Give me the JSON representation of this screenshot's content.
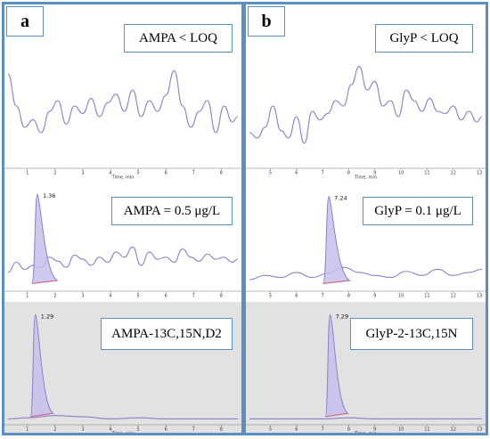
{
  "chart_data": [
    {
      "panel": "a",
      "type": "line",
      "rows": [
        {
          "label": "AMPA < LOQ",
          "xlabel": "Time, min",
          "xticks": [
            "1",
            "2",
            "3",
            "4",
            "5",
            "6",
            "7",
            "8"
          ],
          "xlim": [
            0.3,
            8.6
          ],
          "peak": null,
          "background": "#ffffff",
          "series": [
            {
              "x": [
                0.3,
                0.6,
                0.9,
                1.2,
                1.5,
                1.8,
                2.1,
                2.4,
                2.7,
                3.0,
                3.3,
                3.6,
                3.9,
                4.2,
                4.5,
                4.8,
                5.1,
                5.4,
                5.7,
                6.0,
                6.3,
                6.6,
                6.9,
                7.2,
                7.5,
                7.8,
                8.1,
                8.4,
                8.6
              ],
              "y": [
                0.85,
                0.55,
                0.35,
                0.42,
                0.3,
                0.5,
                0.6,
                0.38,
                0.55,
                0.48,
                0.62,
                0.45,
                0.58,
                0.66,
                0.5,
                0.7,
                0.45,
                0.6,
                0.5,
                0.65,
                0.88,
                0.55,
                0.35,
                0.5,
                0.6,
                0.3,
                0.55,
                0.4,
                0.45
              ]
            }
          ]
        },
        {
          "label": "AMPA = 0.5 μg/L",
          "xlabel": "",
          "xticks": [
            "1",
            "2",
            "3",
            "4",
            "5",
            "6",
            "7",
            "8"
          ],
          "xlim": [
            0.3,
            8.6
          ],
          "peak": {
            "x": 1.36,
            "label": "1.36",
            "height": 0.92,
            "width": 0.45
          },
          "background": "#ffffff",
          "series": [
            {
              "x": [
                0.3,
                0.6,
                0.9,
                1.2,
                1.5,
                1.8,
                2.1,
                2.4,
                2.7,
                3.0,
                3.3,
                3.6,
                3.9,
                4.2,
                4.5,
                4.8,
                5.1,
                5.4,
                5.7,
                6.0,
                6.3,
                6.6,
                6.9,
                7.2,
                7.5,
                7.8,
                8.1,
                8.4,
                8.6
              ],
              "y": [
                0.15,
                0.25,
                0.18,
                0.22,
                0.2,
                0.3,
                0.26,
                0.2,
                0.32,
                0.28,
                0.22,
                0.3,
                0.25,
                0.35,
                0.3,
                0.4,
                0.22,
                0.35,
                0.28,
                0.3,
                0.25,
                0.38,
                0.3,
                0.26,
                0.33,
                0.28,
                0.3,
                0.25,
                0.28
              ]
            }
          ]
        },
        {
          "label": "AMPA-13C,15N,D2",
          "xlabel": "Time, min",
          "xticks": [
            "1",
            "2",
            "3",
            "4",
            "5",
            "6",
            "7",
            "8"
          ],
          "xlim": [
            0.3,
            8.6
          ],
          "peak": {
            "x": 1.29,
            "label": "1.29",
            "height": 0.95,
            "width": 0.4
          },
          "background": "#e2e2e2",
          "series": [
            {
              "x": [
                0.3,
                1.0,
                2.0,
                3.0,
                4.0,
                5.0,
                6.0,
                7.0,
                8.0,
                8.6
              ],
              "y": [
                0.02,
                0.03,
                0.05,
                0.04,
                0.02,
                0.03,
                0.02,
                0.02,
                0.02,
                0.02
              ]
            }
          ]
        }
      ]
    },
    {
      "panel": "b",
      "type": "line",
      "rows": [
        {
          "label": "GlyP < LOQ",
          "xlabel": "Time, min",
          "xticks": [
            "5",
            "6",
            "7",
            "8",
            "9",
            "10",
            "11",
            "12",
            "13"
          ],
          "xlim": [
            4.2,
            13.1
          ],
          "peak": null,
          "background": "#ffffff",
          "series": [
            {
              "x": [
                4.2,
                4.5,
                4.8,
                5.1,
                5.4,
                5.7,
                6.0,
                6.3,
                6.6,
                6.9,
                7.2,
                7.5,
                7.8,
                8.1,
                8.4,
                8.7,
                9.0,
                9.3,
                9.6,
                9.9,
                10.2,
                10.5,
                10.8,
                11.1,
                11.4,
                11.7,
                12.0,
                12.3,
                12.6,
                12.9,
                13.1
              ],
              "y": [
                0.3,
                0.25,
                0.35,
                0.55,
                0.32,
                0.25,
                0.45,
                0.2,
                0.5,
                0.42,
                0.48,
                0.6,
                0.55,
                0.75,
                0.92,
                0.7,
                0.78,
                0.55,
                0.6,
                0.45,
                0.7,
                0.6,
                0.5,
                0.62,
                0.5,
                0.48,
                0.55,
                0.42,
                0.5,
                0.4,
                0.45
              ]
            }
          ]
        },
        {
          "label": "GlyP = 0.1 μg/L",
          "xlabel": "",
          "xticks": [
            "5",
            "6",
            "7",
            "8",
            "9",
            "10",
            "11",
            "12",
            "13"
          ],
          "xlim": [
            4.2,
            13.1
          ],
          "peak": {
            "x": 7.24,
            "label": "7.24",
            "height": 0.9,
            "width": 0.5
          },
          "background": "#ffffff",
          "series": [
            {
              "x": [
                4.2,
                4.8,
                5.4,
                6.0,
                6.6,
                7.2,
                7.8,
                8.4,
                9.0,
                9.6,
                10.2,
                10.8,
                11.4,
                12.0,
                12.6,
                13.1
              ],
              "y": [
                0.08,
                0.12,
                0.1,
                0.15,
                0.1,
                0.14,
                0.2,
                0.15,
                0.12,
                0.1,
                0.16,
                0.12,
                0.18,
                0.12,
                0.15,
                0.18
              ]
            }
          ]
        },
        {
          "label": "GlyP-2-13C,15N",
          "xlabel": "Time, min",
          "xticks": [
            "5",
            "6",
            "7",
            "8",
            "9",
            "10",
            "11",
            "12",
            "13"
          ],
          "xlim": [
            4.2,
            13.1
          ],
          "peak": {
            "x": 7.29,
            "label": "7.29",
            "height": 0.95,
            "width": 0.42
          },
          "background": "#e2e2e2",
          "series": [
            {
              "x": [
                4.2,
                5.0,
                6.0,
                7.0,
                8.0,
                9.0,
                10.0,
                11.0,
                12.0,
                13.1
              ],
              "y": [
                0.02,
                0.02,
                0.02,
                0.02,
                0.03,
                0.02,
                0.02,
                0.02,
                0.02,
                0.02
              ]
            }
          ]
        }
      ]
    }
  ],
  "panels": [
    {
      "letter": "a"
    },
    {
      "letter": "b"
    }
  ],
  "colors": {
    "trace": "#8a80c8",
    "fill": "#c5c0ec",
    "baseline": "#d9628a",
    "frame": "#5a8fc4"
  }
}
